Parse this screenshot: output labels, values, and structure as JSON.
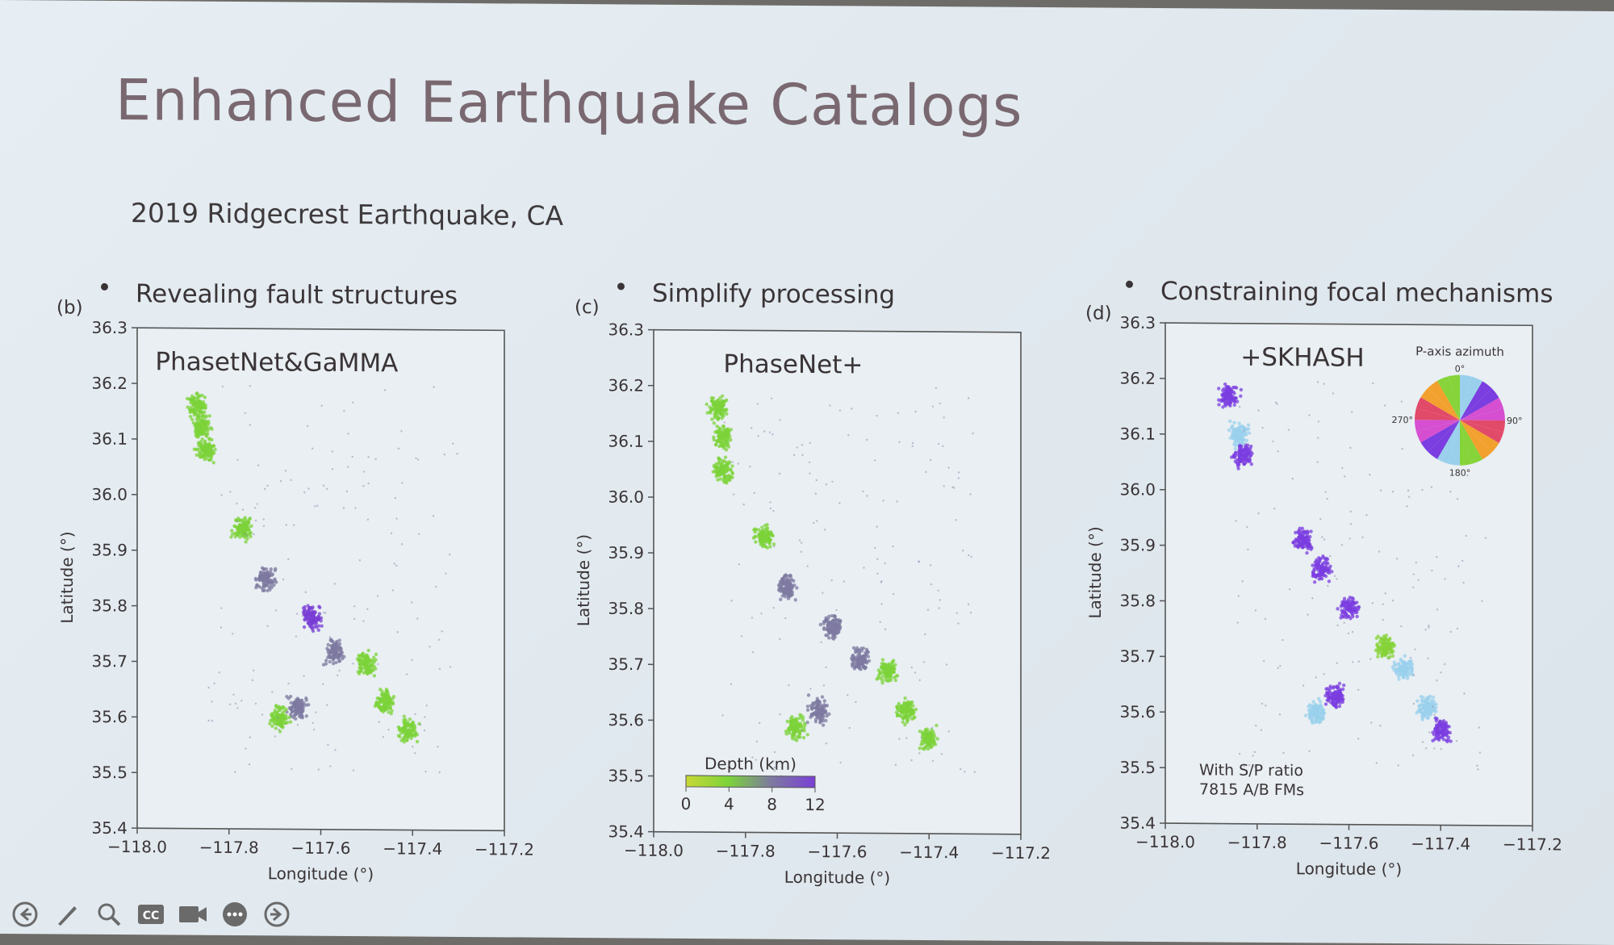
{
  "slide": {
    "title": "Enhanced Earthquake Catalogs",
    "subtitle": "2019 Ridgecrest Earthquake, CA"
  },
  "colors": {
    "frame": "#555555",
    "text": "#3a3436",
    "title": "#7a6870",
    "depth_shallow": "#c8d836",
    "depth_4km": "#7cd33a",
    "depth_8km": "#7d7aa0",
    "depth_12km": "#7a3fd6",
    "azimuth_purple": "#7b3ee0",
    "azimuth_green": "#86d33a",
    "azimuth_cyan": "#9ad0ec"
  },
  "panels": [
    {
      "letter": "(b)",
      "bullet": "Revealing fault structures",
      "label": "PhasetNet&GaMMA"
    },
    {
      "letter": "(c)",
      "bullet": "Simplify processing",
      "label": "PhaseNet+",
      "colorbar": {
        "title": "Depth (km)",
        "ticks": [
          "0",
          "4",
          "8",
          "12"
        ]
      }
    },
    {
      "letter": "(d)",
      "bullet": "Constraining focal mechanisms",
      "label": "+SKHASH",
      "note": [
        "With S/P ratio",
        "7815 A/B FMs"
      ],
      "inset": {
        "title": "P-axis azimuth",
        "ticks": [
          "0°",
          "90°",
          "180°",
          "270°"
        ]
      }
    }
  ],
  "chart_data": [
    {
      "type": "scatter",
      "title": "PhasetNet&GaMMA",
      "xlabel": "Longitude (°)",
      "ylabel": "Latitude (°)",
      "xlim": [
        -118.0,
        -117.2
      ],
      "ylim": [
        35.4,
        36.3
      ],
      "xticks": [
        "−118.0",
        "−117.8",
        "−117.6",
        "−117.4",
        "−117.2"
      ],
      "yticks": [
        "35.4",
        "35.5",
        "35.6",
        "35.7",
        "35.8",
        "35.9",
        "36.0",
        "36.1",
        "36.2",
        "36.3"
      ],
      "color_encoding": "depth (km)",
      "clusters": [
        {
          "lon": -117.87,
          "lat": 36.16,
          "depth_km": 3
        },
        {
          "lon": -117.86,
          "lat": 36.12,
          "depth_km": 4
        },
        {
          "lon": -117.85,
          "lat": 36.08,
          "depth_km": 3
        },
        {
          "lon": -117.77,
          "lat": 35.94,
          "depth_km": 4
        },
        {
          "lon": -117.72,
          "lat": 35.85,
          "depth_km": 9
        },
        {
          "lon": -117.62,
          "lat": 35.78,
          "depth_km": 10
        },
        {
          "lon": -117.57,
          "lat": 35.72,
          "depth_km": 9
        },
        {
          "lon": -117.5,
          "lat": 35.7,
          "depth_km": 4
        },
        {
          "lon": -117.46,
          "lat": 35.63,
          "depth_km": 4
        },
        {
          "lon": -117.41,
          "lat": 35.58,
          "depth_km": 4
        },
        {
          "lon": -117.65,
          "lat": 35.62,
          "depth_km": 7
        },
        {
          "lon": -117.69,
          "lat": 35.6,
          "depth_km": 4
        }
      ]
    },
    {
      "type": "scatter",
      "title": "PhaseNet+",
      "xlabel": "Longitude (°)",
      "ylabel": "Latitude (°)",
      "xlim": [
        -118.0,
        -117.2
      ],
      "ylim": [
        35.4,
        36.3
      ],
      "xticks": [
        "−118.0",
        "−117.8",
        "−117.6",
        "−117.4",
        "−117.2"
      ],
      "yticks": [
        "35.4",
        "35.5",
        "35.6",
        "35.7",
        "35.8",
        "35.9",
        "36.0",
        "36.1",
        "36.2",
        "36.3"
      ],
      "color_encoding": "depth (km)",
      "colorbar": {
        "title": "Depth (km)",
        "range": [
          0,
          12
        ]
      },
      "clusters": [
        {
          "lon": -117.86,
          "lat": 36.16,
          "depth_km": 3
        },
        {
          "lon": -117.85,
          "lat": 36.11,
          "depth_km": 3
        },
        {
          "lon": -117.85,
          "lat": 36.05,
          "depth_km": 3
        },
        {
          "lon": -117.76,
          "lat": 35.93,
          "depth_km": 4
        },
        {
          "lon": -117.71,
          "lat": 35.84,
          "depth_km": 9
        },
        {
          "lon": -117.61,
          "lat": 35.77,
          "depth_km": 9
        },
        {
          "lon": -117.55,
          "lat": 35.71,
          "depth_km": 8
        },
        {
          "lon": -117.49,
          "lat": 35.69,
          "depth_km": 4
        },
        {
          "lon": -117.45,
          "lat": 35.62,
          "depth_km": 4
        },
        {
          "lon": -117.4,
          "lat": 35.57,
          "depth_km": 4
        },
        {
          "lon": -117.64,
          "lat": 35.62,
          "depth_km": 7
        },
        {
          "lon": -117.69,
          "lat": 35.59,
          "depth_km": 4
        }
      ]
    },
    {
      "type": "scatter",
      "title": "+SKHASH",
      "xlabel": "Longitude (°)",
      "ylabel": "Latitude (°)",
      "xlim": [
        -118.0,
        -117.2
      ],
      "ylim": [
        35.4,
        36.3
      ],
      "xticks": [
        "−118.0",
        "−117.8",
        "−117.6",
        "−117.4",
        "−117.2"
      ],
      "yticks": [
        "35.4",
        "35.5",
        "35.6",
        "35.7",
        "35.8",
        "35.9",
        "36.0",
        "36.1",
        "36.2",
        "36.3"
      ],
      "color_encoding": "P-axis azimuth",
      "annotation": [
        "With S/P ratio",
        "7815 A/B FMs"
      ],
      "clusters": [
        {
          "lon": -117.86,
          "lat": 36.17,
          "azimuth": "purple"
        },
        {
          "lon": -117.84,
          "lat": 36.1,
          "azimuth": "cyan"
        },
        {
          "lon": -117.83,
          "lat": 36.06,
          "azimuth": "purple"
        },
        {
          "lon": -117.7,
          "lat": 35.91,
          "azimuth": "purple"
        },
        {
          "lon": -117.66,
          "lat": 35.86,
          "azimuth": "purple"
        },
        {
          "lon": -117.6,
          "lat": 35.79,
          "azimuth": "purple"
        },
        {
          "lon": -117.52,
          "lat": 35.72,
          "azimuth": "green"
        },
        {
          "lon": -117.48,
          "lat": 35.68,
          "azimuth": "cyan"
        },
        {
          "lon": -117.43,
          "lat": 35.61,
          "azimuth": "cyan"
        },
        {
          "lon": -117.4,
          "lat": 35.57,
          "azimuth": "purple"
        },
        {
          "lon": -117.63,
          "lat": 35.63,
          "azimuth": "purple"
        },
        {
          "lon": -117.67,
          "lat": 35.6,
          "azimuth": "cyan"
        }
      ]
    }
  ],
  "toolbar": [
    {
      "name": "prev-icon"
    },
    {
      "name": "pen-icon"
    },
    {
      "name": "zoom-icon"
    },
    {
      "name": "captions-icon"
    },
    {
      "name": "camera-icon"
    },
    {
      "name": "more-icon"
    },
    {
      "name": "next-icon"
    }
  ]
}
